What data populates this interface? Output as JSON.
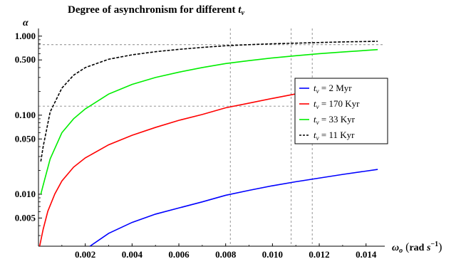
{
  "chart_data": {
    "type": "line",
    "title": "Degree of asynchronism for different",
    "title_var": "t",
    "title_var_sub": "v",
    "xlabel": {
      "var": "ω",
      "sub": "o",
      "unit_rad": "rad",
      "unit_s": "s",
      "unit_exp": "−1"
    },
    "ylabel": "α",
    "x_range": [
      0,
      0.0148
    ],
    "y_range": [
      0.0022,
      1.25
    ],
    "y_scale": "log",
    "x_ticks": [
      {
        "value": 0.002,
        "label": "0.002"
      },
      {
        "value": 0.004,
        "label": "0.004"
      },
      {
        "value": 0.006,
        "label": "0.006"
      },
      {
        "value": 0.008,
        "label": "0.008"
      },
      {
        "value": 0.01,
        "label": "0.010"
      },
      {
        "value": 0.012,
        "label": "0.012"
      },
      {
        "value": 0.014,
        "label": "0.014"
      }
    ],
    "y_ticks": [
      {
        "value": 0.005,
        "label": "0.005"
      },
      {
        "value": 0.01,
        "label": "0.010"
      },
      {
        "value": 0.05,
        "label": "0.050"
      },
      {
        "value": 0.1,
        "label": "0.100"
      },
      {
        "value": 0.5,
        "label": "0.500"
      },
      {
        "value": 1.0,
        "label": "1.000"
      }
    ],
    "reference_lines": {
      "vertical": [
        0.0082,
        0.0108,
        0.0117
      ],
      "horizontal": [
        0.13,
        0.78
      ],
      "style": "dashed",
      "color": "#888888"
    },
    "legend_position": "center-right",
    "series": [
      {
        "name_var": "t",
        "name_sub": "v",
        "name_value": " = 2 Myr",
        "color": "#0000ff",
        "dash": "solid",
        "x": [
          0.0022,
          0.003,
          0.004,
          0.005,
          0.006,
          0.007,
          0.008,
          0.009,
          0.01,
          0.011,
          0.012,
          0.013,
          0.0145
        ],
        "y": [
          0.0022,
          0.0032,
          0.0044,
          0.0056,
          0.0067,
          0.008,
          0.0097,
          0.0112,
          0.0128,
          0.0144,
          0.016,
          0.0178,
          0.0206
        ]
      },
      {
        "name_var": "t",
        "name_sub": "v",
        "name_value": " = 170 Kyr",
        "color": "#ff0000",
        "dash": "solid",
        "x": [
          5e-05,
          0.0002,
          0.0004,
          0.0007,
          0.001,
          0.0015,
          0.002,
          0.003,
          0.004,
          0.005,
          0.006,
          0.007,
          0.008,
          0.009,
          0.01,
          0.011,
          0.012,
          0.013,
          0.0145
        ],
        "y": [
          0.0022,
          0.0036,
          0.0061,
          0.0101,
          0.0147,
          0.022,
          0.0288,
          0.0422,
          0.0557,
          0.07,
          0.086,
          0.102,
          0.124,
          0.142,
          0.163,
          0.186,
          0.205,
          0.222,
          0.25
        ]
      },
      {
        "name_var": "t",
        "name_sub": "v",
        "name_value": " = 33 Kyr",
        "color": "#00ee00",
        "dash": "solid",
        "x": [
          0.0001,
          0.0002,
          0.0005,
          0.001,
          0.0015,
          0.002,
          0.003,
          0.004,
          0.005,
          0.006,
          0.007,
          0.008,
          0.009,
          0.01,
          0.011,
          0.012,
          0.013,
          0.0145
        ],
        "y": [
          0.01,
          0.013,
          0.028,
          0.06,
          0.09,
          0.12,
          0.185,
          0.245,
          0.3,
          0.35,
          0.4,
          0.45,
          0.49,
          0.53,
          0.565,
          0.6,
          0.63,
          0.675
        ]
      },
      {
        "name_var": "t",
        "name_sub": "v",
        "name_value": " = 11 Kyr",
        "color": "#000000",
        "dash": "dashed",
        "x": [
          0.0001,
          0.0002,
          0.0005,
          0.001,
          0.0015,
          0.002,
          0.003,
          0.004,
          0.005,
          0.006,
          0.007,
          0.008,
          0.009,
          0.01,
          0.011,
          0.012,
          0.013,
          0.0145
        ],
        "y": [
          0.026,
          0.04,
          0.11,
          0.22,
          0.32,
          0.4,
          0.51,
          0.58,
          0.635,
          0.68,
          0.72,
          0.755,
          0.78,
          0.8,
          0.815,
          0.83,
          0.845,
          0.86
        ]
      }
    ]
  }
}
